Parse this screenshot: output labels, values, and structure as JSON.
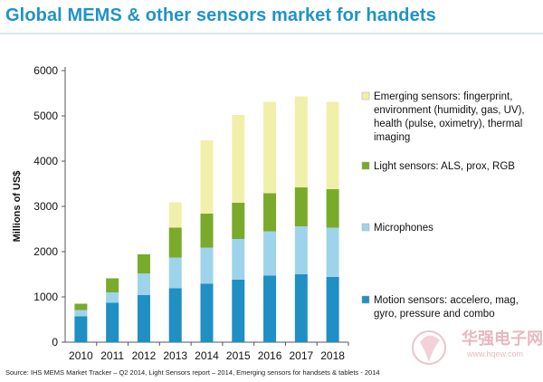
{
  "header": {
    "title": "Global MEMS & other sensors market for handets"
  },
  "footer": {
    "source": "Source: IHS MEMS Market Tracker – Q2 2014, Light Sensors report – 2014, Emerging sensors for handsets & tablets - 2014"
  },
  "watermark": {
    "name": "华强电子网",
    "url": "www.hqew.com"
  },
  "chart_data": {
    "type": "bar",
    "stacked": true,
    "title": "Global MEMS & other sensors market for handets",
    "xlabel": "",
    "ylabel": "Millions of US$",
    "ylim": [
      0,
      6000
    ],
    "yticks": [
      0,
      1000,
      2000,
      3000,
      4000,
      5000,
      6000
    ],
    "grid": false,
    "legend_position": "right",
    "categories": [
      "2010",
      "2011",
      "2012",
      "2013",
      "2014",
      "2015",
      "2016",
      "2017",
      "2018"
    ],
    "series": [
      {
        "name": "Motion sensors: accelero, mag, gyro, pressure and combo",
        "color": "#1f8fc4",
        "values": [
          570,
          870,
          1040,
          1190,
          1290,
          1380,
          1470,
          1500,
          1440
        ]
      },
      {
        "name": "Microphones",
        "color": "#9dd4ec",
        "values": [
          140,
          230,
          480,
          680,
          800,
          900,
          980,
          1060,
          1090
        ]
      },
      {
        "name": "Light sensors: ALS, prox, RGB",
        "color": "#7aaa2a",
        "values": [
          140,
          310,
          420,
          660,
          750,
          800,
          840,
          860,
          850
        ]
      },
      {
        "name": "Emerging sensors: fingerprint, environment (humidity, gas, UV), health (pulse, oximetry), thermal imaging",
        "color": "#f0f0aa",
        "values": [
          0,
          0,
          0,
          560,
          1620,
          1940,
          2020,
          2010,
          1930
        ]
      }
    ]
  }
}
